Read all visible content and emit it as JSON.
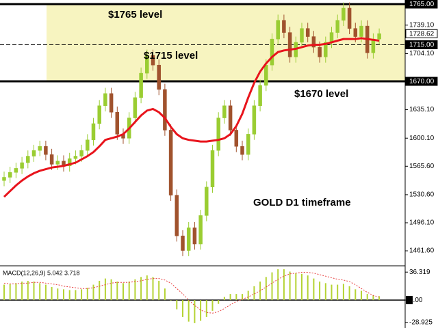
{
  "chart_data": [
    {
      "type": "candlestick",
      "annotations": [
        "$1765 level",
        "$1715 level",
        "$1670 level",
        "GOLD D1 timeframe"
      ],
      "ylim": [
        1444,
        1770
      ],
      "yticks": [
        {
          "value": 1765,
          "label": "1765.00",
          "style": "level-solid"
        },
        {
          "value": 1739.1,
          "label": "1739.10"
        },
        {
          "value": 1728.62,
          "label": "1728.62",
          "style": "current"
        },
        {
          "value": 1715,
          "label": "1715.00",
          "style": "level-dashed"
        },
        {
          "value": 1704.1,
          "label": "1704.10"
        },
        {
          "value": 1670,
          "label": "1670.00",
          "style": "level-solid"
        },
        {
          "value": 1635.1,
          "label": "1635.10"
        },
        {
          "value": 1600.1,
          "label": "1600.10"
        },
        {
          "value": 1565.6,
          "label": "1565.60"
        },
        {
          "value": 1530.6,
          "label": "1530.60"
        },
        {
          "value": 1496.1,
          "label": "1496.10"
        },
        {
          "value": 1461.6,
          "label": "1461.60"
        }
      ],
      "zone_color": "#f7f4c0",
      "up_color": "#9acd32",
      "down_color": "#a0522d",
      "open": [
        1548,
        1552,
        1558,
        1563,
        1570,
        1578,
        1585,
        1590,
        1580,
        1568,
        1572,
        1566,
        1575,
        1578,
        1585,
        1598,
        1618,
        1640,
        1655,
        1632,
        1605,
        1600,
        1625,
        1650,
        1680,
        1702,
        1690,
        1660,
        1610,
        1530,
        1480,
        1462,
        1490,
        1470,
        1505,
        1540,
        1585,
        1625,
        1640,
        1610,
        1590,
        1580,
        1605,
        1640,
        1665,
        1690,
        1722,
        1745,
        1730,
        1700,
        1718,
        1735,
        1725,
        1712,
        1700,
        1718,
        1730,
        1745,
        1760,
        1735,
        1725,
        1738,
        1705,
        1722
      ],
      "high": [
        1559,
        1565,
        1570,
        1577,
        1585,
        1592,
        1597,
        1597,
        1587,
        1579,
        1579,
        1582,
        1585,
        1592,
        1605,
        1625,
        1647,
        1662,
        1662,
        1639,
        1612,
        1632,
        1657,
        1687,
        1709,
        1709,
        1697,
        1667,
        1617,
        1537,
        1487,
        1497,
        1497,
        1512,
        1547,
        1592,
        1632,
        1647,
        1647,
        1617,
        1597,
        1612,
        1647,
        1672,
        1697,
        1729,
        1752,
        1752,
        1737,
        1725,
        1742,
        1742,
        1732,
        1719,
        1725,
        1737,
        1752,
        1767,
        1767,
        1742,
        1745,
        1745,
        1729,
        1735
      ],
      "low": [
        1541,
        1545,
        1551,
        1556,
        1563,
        1571,
        1578,
        1573,
        1561,
        1561,
        1559,
        1559,
        1568,
        1571,
        1578,
        1591,
        1611,
        1633,
        1625,
        1598,
        1593,
        1593,
        1618,
        1643,
        1673,
        1683,
        1653,
        1603,
        1523,
        1473,
        1455,
        1455,
        1463,
        1463,
        1498,
        1533,
        1578,
        1618,
        1603,
        1583,
        1573,
        1573,
        1598,
        1633,
        1658,
        1683,
        1715,
        1723,
        1693,
        1693,
        1711,
        1718,
        1705,
        1693,
        1693,
        1711,
        1723,
        1738,
        1728,
        1718,
        1718,
        1698,
        1698,
        1715
      ],
      "close": [
        1552,
        1558,
        1563,
        1570,
        1578,
        1585,
        1590,
        1580,
        1568,
        1572,
        1566,
        1575,
        1578,
        1585,
        1598,
        1618,
        1640,
        1655,
        1632,
        1605,
        1600,
        1625,
        1650,
        1680,
        1702,
        1690,
        1660,
        1610,
        1530,
        1480,
        1462,
        1490,
        1470,
        1505,
        1540,
        1585,
        1625,
        1640,
        1610,
        1590,
        1580,
        1605,
        1640,
        1665,
        1690,
        1722,
        1745,
        1730,
        1700,
        1718,
        1735,
        1725,
        1712,
        1700,
        1718,
        1730,
        1745,
        1760,
        1735,
        1725,
        1738,
        1705,
        1722,
        1728.62
      ],
      "series": [
        {
          "color": "#e8141c",
          "values": [
            1528,
            1535,
            1542,
            1548,
            1553,
            1557,
            1560,
            1562,
            1564,
            1565,
            1566,
            1568,
            1570,
            1574,
            1578,
            1583,
            1590,
            1598,
            1600,
            1602,
            1605,
            1612,
            1620,
            1628,
            1634,
            1636,
            1632,
            1625,
            1614,
            1605,
            1600,
            1598,
            1597,
            1596,
            1596,
            1597,
            1598,
            1600,
            1605,
            1615,
            1630,
            1650,
            1668,
            1682,
            1692,
            1700,
            1706,
            1708,
            1709,
            1710,
            1712,
            1714,
            1715,
            1715,
            1716,
            1718,
            1720,
            1722,
            1722,
            1722,
            1723,
            1722,
            1721,
            1720
          ]
        }
      ]
    },
    {
      "type": "bar",
      "title": "MACD(12,26,9) 5.042 3.718",
      "ylim": [
        -36.3,
        43.6
      ],
      "yticks": [
        36.319,
        {
          "value": 0,
          "label": "0.00"
        },
        -28.925
      ],
      "series": [
        {
          "color": "#b5d334",
          "values": [
            20,
            21,
            22,
            24,
            25,
            24,
            22,
            20,
            17,
            15,
            14,
            13,
            13,
            14,
            16,
            20,
            25,
            28,
            27,
            24,
            22,
            24,
            27,
            30,
            32,
            30,
            25,
            15,
            0,
            -12,
            -22,
            -28,
            -30,
            -27,
            -22,
            -14,
            -5,
            4,
            8,
            8,
            8,
            12,
            18,
            24,
            30,
            36,
            40,
            40,
            37,
            35,
            34,
            32,
            28,
            24,
            22,
            20,
            20,
            21,
            18,
            14,
            12,
            8,
            6,
            5.042
          ]
        },
        {
          "color": "#e84040",
          "values": [
            22,
            21,
            21,
            22,
            22,
            23,
            23,
            22,
            21,
            20,
            18,
            17,
            16,
            15,
            15,
            16,
            18,
            20,
            22,
            23,
            23,
            23,
            24,
            25,
            27,
            28,
            28,
            26,
            22,
            15,
            8,
            0,
            -7,
            -13,
            -16,
            -17,
            -15,
            -11,
            -6,
            -2,
            1,
            4,
            8,
            12,
            17,
            22,
            27,
            31,
            34,
            35,
            36,
            36,
            35,
            33,
            31,
            29,
            27,
            26,
            24,
            20,
            15,
            10,
            6,
            3.718
          ]
        }
      ]
    }
  ]
}
